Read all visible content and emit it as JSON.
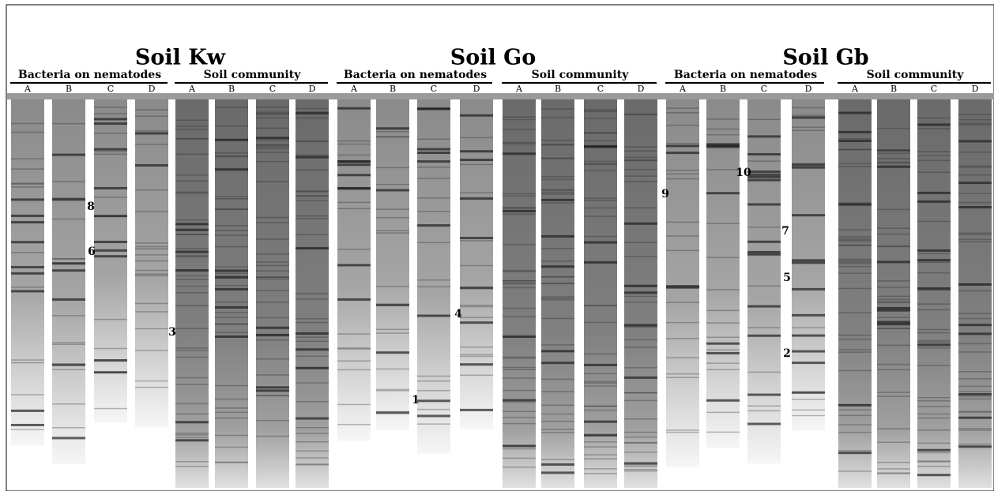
{
  "panels": [
    {
      "title": "Soil Kw",
      "groups": [
        {
          "label": "Bacteria on nematodes",
          "lanes": [
            "A",
            "B",
            "C",
            "D"
          ]
        },
        {
          "label": "Soil community",
          "lanes": [
            "A",
            "B",
            "C",
            "D"
          ]
        }
      ]
    },
    {
      "title": "Soil Go",
      "groups": [
        {
          "label": "Bacteria on nematodes",
          "lanes": [
            "A",
            "B",
            "C",
            "D"
          ]
        },
        {
          "label": "Soil community",
          "lanes": [
            "A",
            "B",
            "C",
            "D"
          ]
        }
      ]
    },
    {
      "title": "Soil Gb",
      "groups": [
        {
          "label": "Bacteria on nematodes",
          "lanes": [
            "A",
            "B",
            "C",
            "D"
          ]
        },
        {
          "label": "Soil community",
          "lanes": [
            "A",
            "B",
            "C",
            "D"
          ]
        }
      ]
    }
  ],
  "band_labels": [
    "8",
    "6",
    "3",
    "4",
    "1",
    "9",
    "10",
    "7",
    "5",
    "2"
  ]
}
